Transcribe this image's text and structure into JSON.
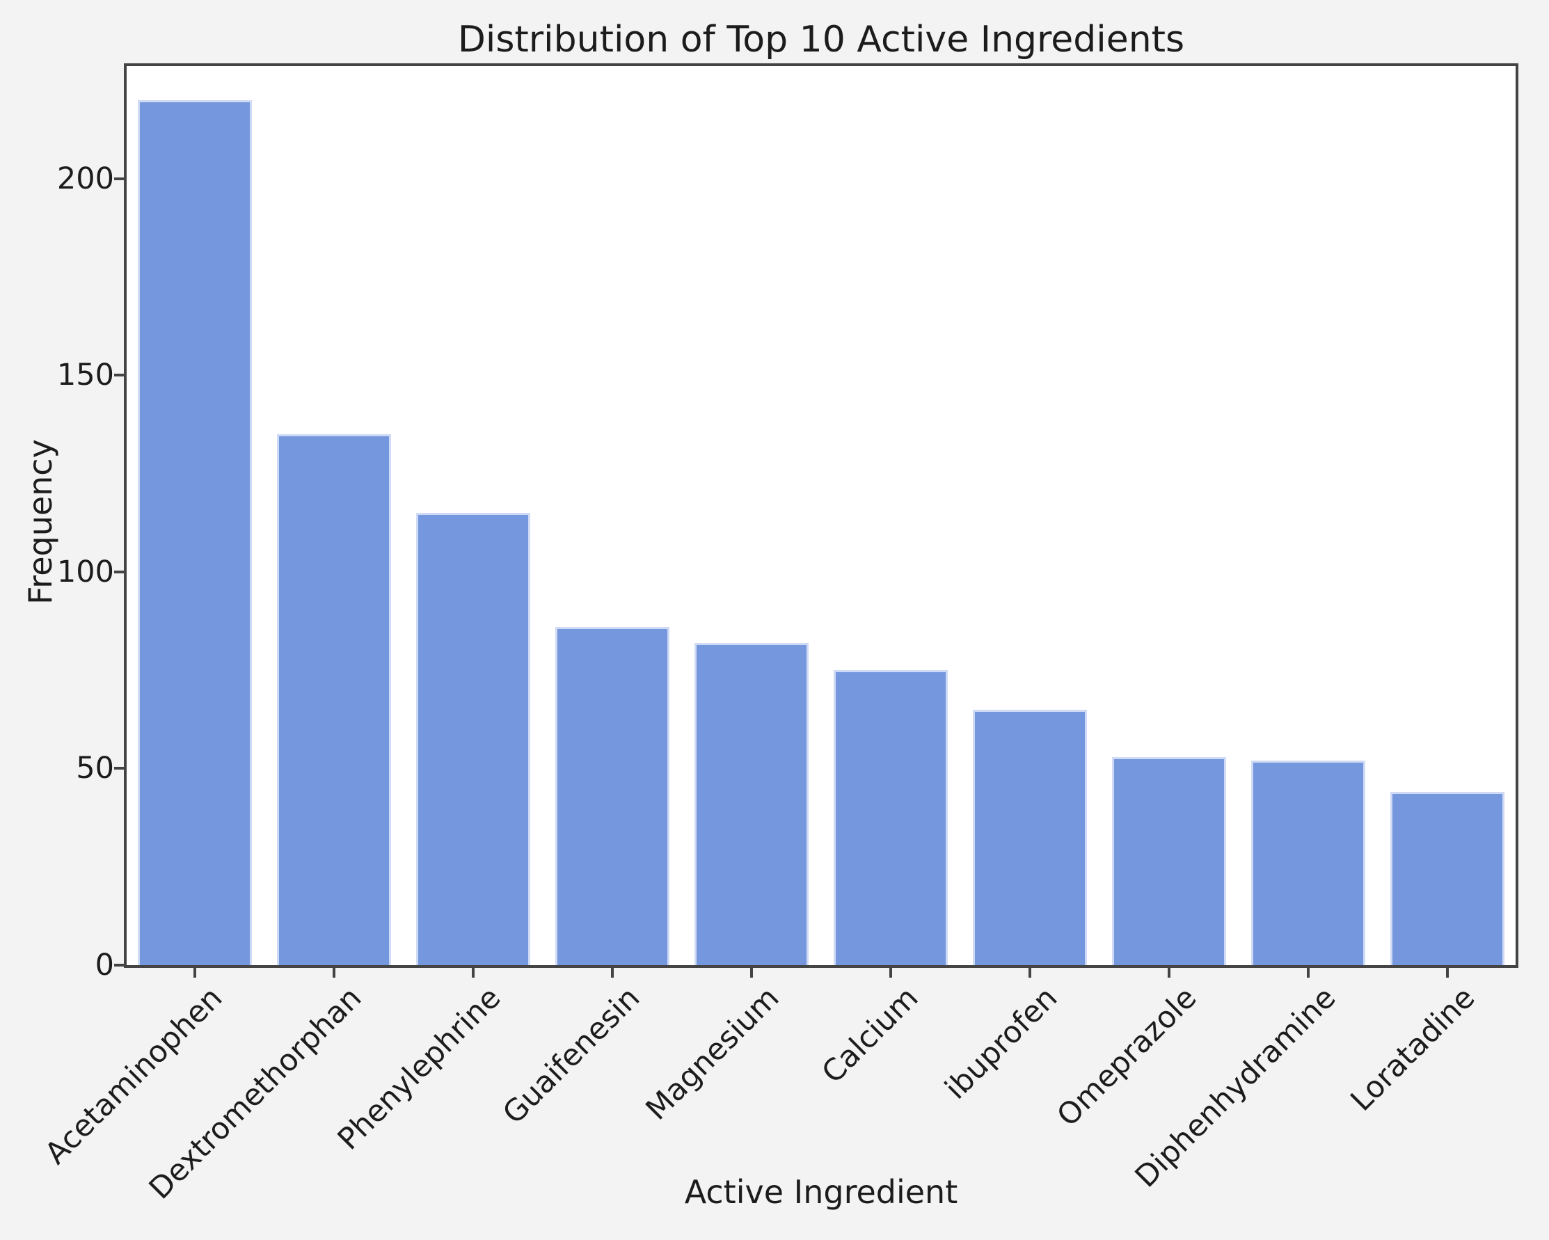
{
  "chart_data": {
    "type": "bar",
    "title": "Distribution of Top 10 Active Ingredients",
    "xlabel": "Active Ingredient",
    "ylabel": "Frequency",
    "categories": [
      "Acetaminophen",
      "Dextromethorphan",
      "Phenylephrine",
      "Guaifenesin",
      "Magnesium",
      "Calcium",
      "ibuprofen",
      "Omeprazole",
      "Diphenhydramine",
      "Loratadine"
    ],
    "values": [
      220,
      135,
      115,
      86,
      82,
      75,
      65,
      53,
      52,
      44
    ],
    "yticks": [
      0,
      50,
      100,
      150,
      200
    ],
    "ylim": [
      0,
      229
    ],
    "grid": false,
    "legend": null,
    "bar_color": "#7597dd",
    "bar_edge_color": "#cfdaf4",
    "background_color": "#f3f3f3",
    "plot_background_color": "#ffffff",
    "spine_color": "#444444",
    "text_color": "#1c1c1c"
  }
}
